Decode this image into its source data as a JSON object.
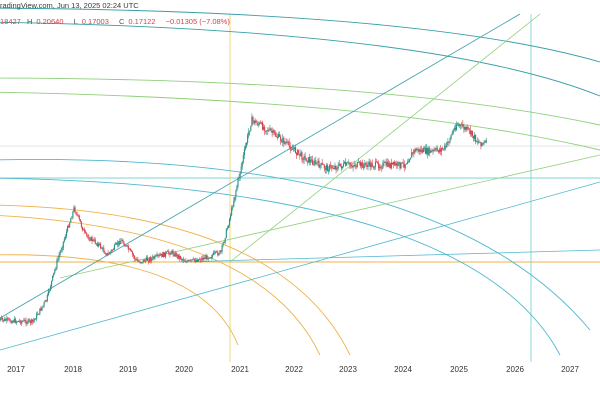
{
  "header": {
    "source": "radingView.com, Jun 13, 2025 02:24 UTC"
  },
  "ohlc": {
    "open": "18427",
    "high_label": "H",
    "high": "0.20640",
    "low_label": "L",
    "low": "0.17003",
    "close_label": "C",
    "close": "0.17122",
    "change": "−0.01305 (−7.08%)"
  },
  "colors": {
    "background": "#ffffff",
    "candle_up": "#2a8f85",
    "candle_down": "#d8404a",
    "fib_circle_cyan": "#4fb8d0",
    "fib_circle_teal": "#3a9ea8",
    "fib_circle_orange": "#f0b24c",
    "fan_line_green": "#8fcf7a",
    "vertical_yellow": "#e6d86a",
    "vertical_cyan": "#7fd6d0"
  },
  "chart_data": {
    "type": "candlestick",
    "title": "",
    "xlabel": "",
    "ylabel": "",
    "x_axis_years": [
      "2017",
      "2018",
      "2019",
      "2020",
      "2021",
      "2022",
      "2023",
      "2024",
      "2025",
      "2026",
      "2027"
    ],
    "last_bar": {
      "open": null,
      "high": 0.2064,
      "low": 0.17003,
      "close": 0.17122,
      "change": -0.01305,
      "change_pct": -7.08
    },
    "grid": false,
    "legend": "none"
  }
}
